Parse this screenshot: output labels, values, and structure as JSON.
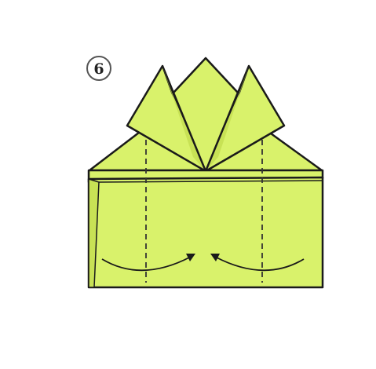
{
  "step": {
    "number": "6"
  },
  "colors": {
    "paper": "#d9f26b",
    "paper_shade": "#c8e255",
    "outline": "#1a1a1a",
    "fold_line": "#333333",
    "background": "#ffffff"
  },
  "icons": {
    "step_marker": "circled-number",
    "fold_guides": "dashed-valley-lines",
    "arrows": "curved-fold-arrows"
  }
}
